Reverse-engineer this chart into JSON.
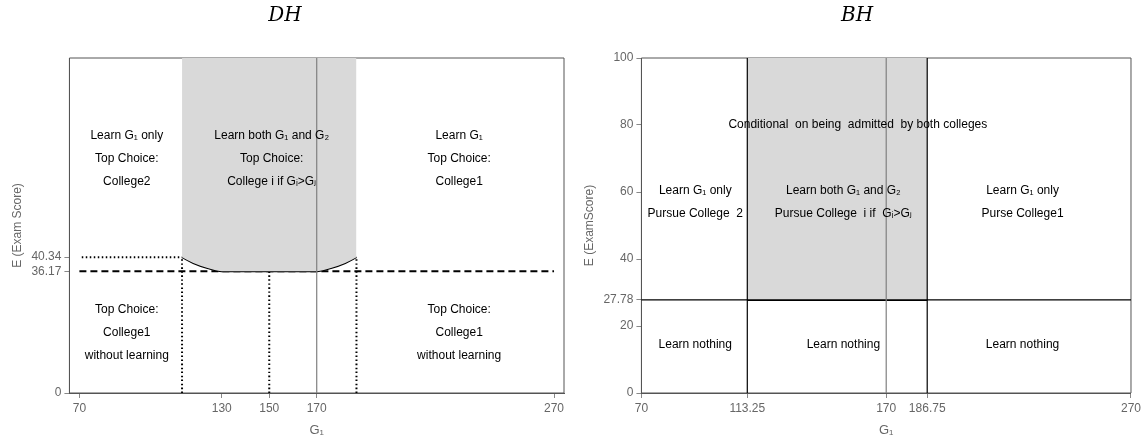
{
  "chart_data": [
    {
      "type": "line",
      "title": "DH",
      "xlabel": "G₁",
      "ylabel": "E (Exam Score)",
      "xlim": [
        65.8,
        274.2
      ],
      "ylim": [
        0,
        99.5
      ],
      "xticks": [
        70,
        130,
        150,
        170,
        270
      ],
      "yticks": [
        0,
        36.17,
        40.34
      ],
      "grid": false,
      "legend": false,
      "marker": "none",
      "series": [
        {
          "color": "#000000",
          "x": [
            113.25,
            118,
            124,
            130,
            170,
            176,
            182,
            186.75
          ],
          "values": [
            40.34,
            38.6,
            37.1,
            36.17,
            36.17,
            37.1,
            38.6,
            40.34
          ],
          "lower": [
            40.34,
            38.6,
            37.1,
            36.17,
            36.17,
            37.1,
            38.6,
            40.34
          ],
          "upper": [
            99.5,
            99.5,
            99.5,
            99.5,
            99.5,
            99.5,
            99.5,
            99.5
          ]
        },
        {
          "color": "#000000",
          "line_style": "dashed",
          "x": [
            70,
            270
          ],
          "values": [
            36.17,
            36.17
          ]
        },
        {
          "color": "#000000",
          "line_style": "dotted",
          "x": [
            71,
            113.25
          ],
          "values": [
            40.34,
            40.34
          ]
        },
        {
          "color": "#000000",
          "line_style": "dotted",
          "x": [
            113.25,
            113.25
          ],
          "values": [
            0,
            40.34
          ]
        },
        {
          "color": "#000000",
          "line_style": "dotted",
          "x": [
            150,
            150
          ],
          "values": [
            0,
            36.17
          ]
        },
        {
          "color": "#000000",
          "line_style": "dotted",
          "x": [
            186.75,
            186.75
          ],
          "values": [
            0,
            40.34
          ]
        }
      ],
      "ref_lines": [
        {
          "axis": "x",
          "value": 170,
          "color": "#808080"
        }
      ],
      "annotations": [
        "Learn G₁ only\nTop Choice:\nCollege2",
        "Learn both G₁ and G₂\nTop Choice:\nCollege i if Gᵢ>Gⱼ",
        "Learn G₁\nTop Choice:\nCollege1",
        "Top Choice:\nCollege1\nwithout learning",
        "Top Choice:\nCollege1\nwithout learning"
      ]
    },
    {
      "type": "line",
      "title": "BH",
      "xlabel": "G₁",
      "ylabel": "E (ExamScore)",
      "xlim": [
        70,
        270
      ],
      "ylim": [
        0,
        100
      ],
      "xticks": [
        70,
        113.25,
        170,
        186.75,
        270
      ],
      "yticks": [
        0,
        20,
        27.78,
        40,
        60,
        80,
        100
      ],
      "grid": false,
      "legend": false,
      "marker": "none",
      "series": [
        {
          "color": "#000000",
          "x": [
            113.25,
            186.75
          ],
          "values": [
            27.78,
            27.78
          ],
          "lower": [
            27.78,
            27.78
          ],
          "upper": [
            100,
            100
          ]
        }
      ],
      "ref_lines": [
        {
          "axis": "y",
          "value": 27.78,
          "color": "#000000"
        },
        {
          "axis": "x",
          "value": 113.25,
          "color": "#000000"
        },
        {
          "axis": "x",
          "value": 186.75,
          "color": "#000000"
        },
        {
          "axis": "x",
          "value": 170,
          "color": "#808080"
        }
      ],
      "annotations": [
        "Conditional  on being  admitted  by both colleges",
        "Learn G₁ only\nPursue College  2",
        "Learn both G₁ and G₂\nPursue College  i if  Gᵢ>Gⱼ",
        "Learn G₁ only\nPurse College1",
        "Learn nothing",
        "Learn nothing",
        "Learn nothing"
      ]
    }
  ]
}
